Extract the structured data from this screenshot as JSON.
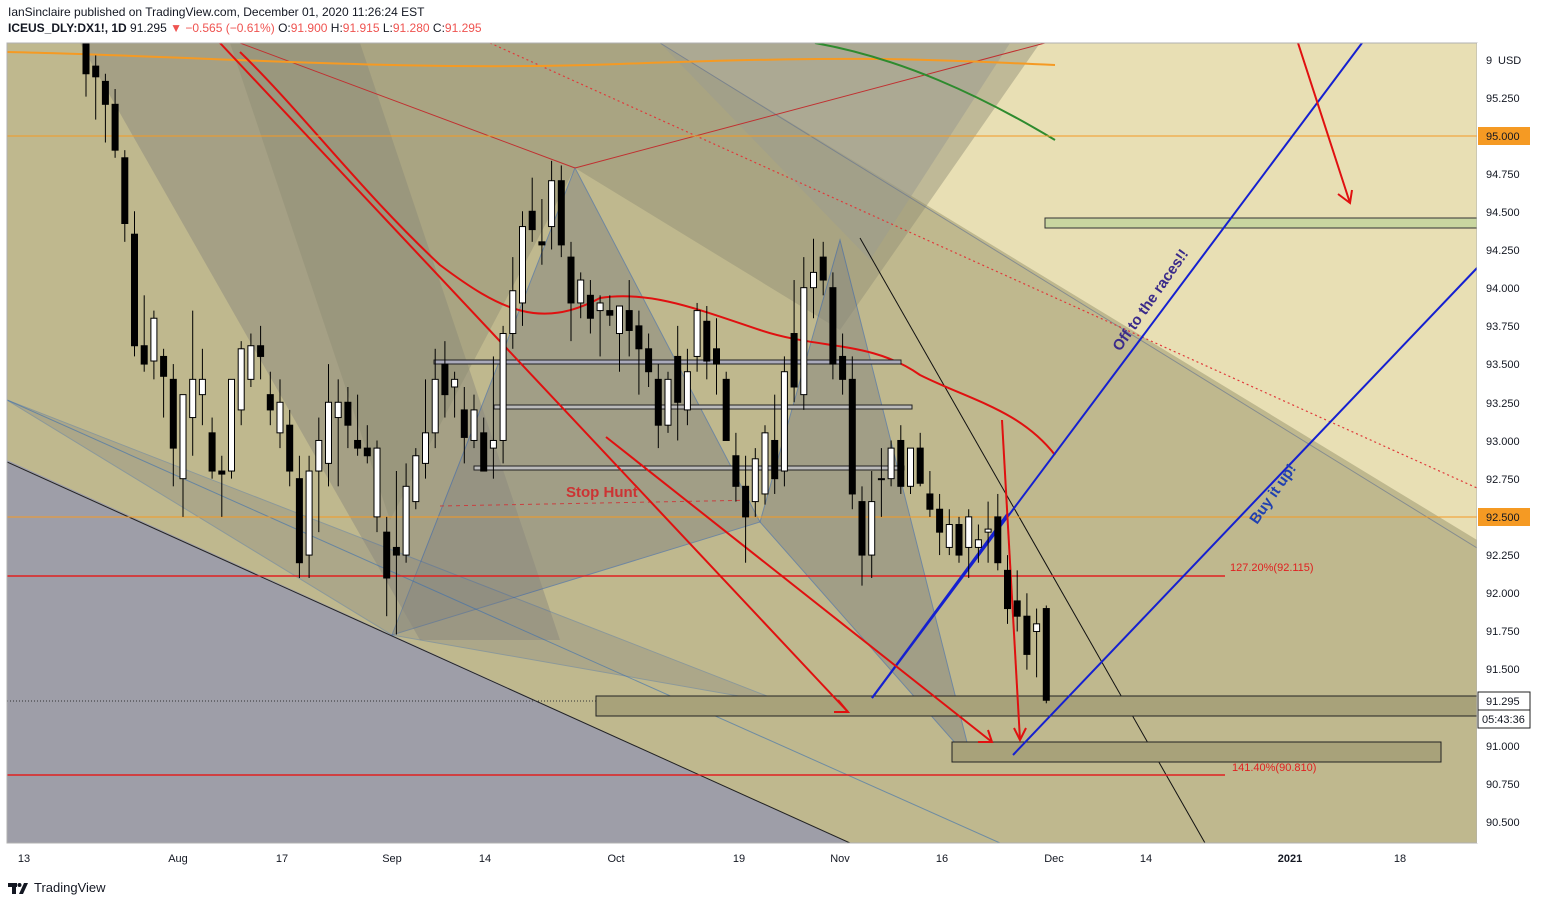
{
  "header": {
    "line1": "IanSinclaire published on TradingView.com, December 01, 2020 11:26:24 EST",
    "symbol": "ICEUS_DLY:DX1!, 1D",
    "last": "91.295",
    "change": "−0.565 (−0.61%)",
    "o_label": "O:",
    "o_value": "91.900",
    "h_label": "H:",
    "h_value": "91.915",
    "l_label": "L:",
    "l_value": "91.280",
    "c_label": "C:",
    "c_value": "91.295"
  },
  "footer": {
    "brand": "TradingView"
  },
  "colors": {
    "up": "#ffffff",
    "down": "#000000",
    "ma_red": "#e01010",
    "ma_orange": "#f5a623",
    "ma_green": "#2e8b2e",
    "blue_line": "#1520d0",
    "orange_level": "#f59a23",
    "fib_red": "#e02020"
  },
  "chart_data": {
    "type": "candlestick",
    "title": "",
    "y_axis": {
      "unit": "USD",
      "range": [
        90.35,
        96.35
      ],
      "ticks": [
        "9",
        "95.250",
        "95.000",
        "94.750",
        "94.500",
        "94.250",
        "94.000",
        "93.750",
        "93.500",
        "93.250",
        "93.000",
        "92.750",
        "92.500",
        "92.250",
        "92.000",
        "91.750",
        "91.500",
        "91.295",
        "91.000",
        "90.750",
        "90.500"
      ]
    },
    "x_axis": {
      "ticks": [
        "13",
        "Aug",
        "17",
        "Sep",
        "14",
        "Oct",
        "19",
        "Nov",
        "16",
        "Dec",
        "14",
        "2021",
        "18"
      ]
    },
    "last_price_label": "91.295",
    "countdown_label": "05:43:36",
    "level_labels": {
      "l95": "95.000",
      "l925": "92.500"
    },
    "fib_labels": {
      "f1272": "127.20%(92.115)",
      "f1414": "141.40%(90.810)"
    },
    "annotations": {
      "stop_hunt": "Stop Hunt",
      "races": "Off to the races!!",
      "buy": "Buy it up!"
    },
    "candles": [
      [
        96.3,
        96.35,
        95.25,
        95.4
      ],
      [
        95.45,
        95.52,
        95.1,
        95.38
      ],
      [
        95.35,
        95.4,
        94.95,
        95.2
      ],
      [
        95.2,
        95.3,
        94.85,
        94.9
      ],
      [
        94.85,
        94.9,
        94.3,
        94.42
      ],
      [
        94.35,
        94.5,
        93.55,
        93.62
      ],
      [
        93.62,
        93.95,
        93.45,
        93.5
      ],
      [
        93.52,
        93.85,
        93.4,
        93.8
      ],
      [
        93.55,
        93.6,
        93.15,
        93.42
      ],
      [
        93.4,
        93.5,
        92.7,
        92.95
      ],
      [
        92.75,
        93.3,
        92.5,
        93.3
      ],
      [
        93.15,
        93.85,
        92.9,
        93.4
      ],
      [
        93.3,
        93.6,
        93.1,
        93.4
      ],
      [
        93.05,
        93.15,
        92.75,
        92.8
      ],
      [
        92.8,
        92.9,
        92.5,
        92.78
      ],
      [
        92.8,
        93.4,
        92.75,
        93.4
      ],
      [
        93.2,
        93.65,
        93.1,
        93.6
      ],
      [
        93.4,
        93.7,
        93.35,
        93.62
      ],
      [
        93.62,
        93.75,
        93.4,
        93.55
      ],
      [
        93.3,
        93.45,
        93.1,
        93.2
      ],
      [
        93.05,
        93.4,
        92.95,
        93.25
      ],
      [
        93.1,
        93.2,
        92.7,
        92.8
      ],
      [
        92.75,
        92.9,
        92.1,
        92.2
      ],
      [
        92.25,
        92.9,
        92.1,
        92.8
      ],
      [
        92.8,
        93.15,
        92.4,
        93.0
      ],
      [
        92.85,
        93.5,
        92.7,
        93.25
      ],
      [
        93.15,
        93.4,
        92.7,
        93.25
      ],
      [
        93.25,
        93.35,
        92.95,
        93.1
      ],
      [
        93.0,
        93.3,
        92.9,
        92.95
      ],
      [
        92.95,
        93.1,
        92.85,
        92.9
      ],
      [
        92.5,
        93.0,
        92.4,
        92.95
      ],
      [
        92.4,
        92.5,
        91.85,
        92.1
      ],
      [
        92.3,
        92.8,
        91.73,
        92.25
      ],
      [
        92.25,
        92.85,
        92.2,
        92.7
      ],
      [
        92.6,
        92.95,
        92.55,
        92.9
      ],
      [
        92.85,
        93.4,
        92.75,
        93.05
      ],
      [
        93.05,
        93.6,
        92.95,
        93.4
      ],
      [
        93.5,
        93.65,
        93.15,
        93.3
      ],
      [
        93.35,
        93.45,
        93.15,
        93.4
      ],
      [
        93.2,
        93.35,
        92.85,
        93.02
      ],
      [
        93.0,
        93.3,
        92.95,
        93.2
      ],
      [
        93.05,
        93.15,
        92.8,
        92.8
      ],
      [
        92.95,
        93.55,
        92.75,
        93.0
      ],
      [
        93.0,
        93.75,
        92.85,
        93.7
      ],
      [
        93.7,
        94.2,
        93.6,
        93.98
      ],
      [
        93.9,
        94.5,
        93.75,
        94.4
      ],
      [
        94.5,
        94.72,
        94.3,
        94.38
      ],
      [
        94.3,
        94.58,
        94.15,
        94.28
      ],
      [
        94.4,
        94.83,
        94.25,
        94.7
      ],
      [
        94.7,
        94.8,
        94.2,
        94.28
      ],
      [
        94.2,
        94.3,
        93.65,
        93.9
      ],
      [
        93.9,
        94.1,
        93.8,
        94.05
      ],
      [
        93.95,
        94.05,
        93.7,
        93.8
      ],
      [
        93.85,
        93.95,
        93.55,
        93.9
      ],
      [
        93.85,
        93.95,
        93.75,
        93.82
      ],
      [
        93.7,
        93.85,
        93.45,
        93.88
      ],
      [
        93.85,
        94.05,
        93.55,
        93.72
      ],
      [
        93.75,
        93.85,
        93.3,
        93.6
      ],
      [
        93.6,
        93.7,
        93.35,
        93.45
      ],
      [
        93.4,
        93.5,
        92.95,
        93.1
      ],
      [
        93.1,
        93.45,
        93.05,
        93.4
      ],
      [
        93.55,
        93.75,
        93.0,
        93.25
      ],
      [
        93.2,
        93.6,
        93.1,
        93.45
      ],
      [
        93.55,
        93.9,
        93.45,
        93.85
      ],
      [
        93.78,
        93.88,
        93.4,
        93.52
      ],
      [
        93.6,
        93.8,
        93.3,
        93.5
      ],
      [
        93.4,
        93.45,
        93.0,
        93.0
      ],
      [
        92.9,
        93.05,
        92.6,
        92.7
      ],
      [
        92.7,
        92.9,
        92.2,
        92.5
      ],
      [
        92.6,
        92.95,
        92.5,
        92.88
      ],
      [
        92.65,
        93.1,
        92.58,
        93.05
      ],
      [
        93.0,
        93.3,
        92.65,
        92.75
      ],
      [
        92.8,
        93.55,
        92.7,
        93.45
      ],
      [
        93.7,
        94.05,
        93.25,
        93.35
      ],
      [
        93.3,
        94.2,
        93.2,
        94.0
      ],
      [
        94.0,
        94.32,
        93.8,
        94.1
      ],
      [
        94.2,
        94.3,
        93.95,
        94.05
      ],
      [
        94.0,
        94.1,
        93.4,
        93.5
      ],
      [
        93.55,
        93.7,
        93.3,
        93.4
      ],
      [
        93.4,
        93.55,
        92.55,
        92.65
      ],
      [
        92.6,
        92.7,
        92.05,
        92.25
      ],
      [
        92.25,
        92.8,
        92.1,
        92.6
      ],
      [
        92.75,
        92.95,
        92.5,
        92.75
      ],
      [
        92.75,
        93.0,
        92.7,
        92.95
      ],
      [
        93.0,
        93.1,
        92.65,
        92.7
      ],
      [
        92.7,
        92.95,
        92.65,
        92.95
      ],
      [
        92.95,
        93.05,
        92.7,
        92.72
      ],
      [
        92.65,
        92.8,
        92.5,
        92.55
      ],
      [
        92.55,
        92.65,
        92.25,
        92.4
      ],
      [
        92.3,
        92.55,
        92.25,
        92.45
      ],
      [
        92.45,
        92.5,
        92.2,
        92.25
      ],
      [
        92.3,
        92.55,
        92.1,
        92.5
      ],
      [
        92.3,
        92.45,
        92.2,
        92.35
      ],
      [
        92.4,
        92.6,
        92.2,
        92.42
      ],
      [
        92.5,
        92.65,
        92.15,
        92.2
      ],
      [
        92.15,
        92.25,
        91.8,
        91.9
      ],
      [
        91.95,
        92.15,
        91.75,
        91.85
      ],
      [
        91.85,
        92.0,
        91.5,
        91.6
      ],
      [
        91.75,
        91.9,
        91.45,
        91.8
      ],
      [
        91.9,
        91.92,
        91.28,
        91.3
      ]
    ]
  }
}
